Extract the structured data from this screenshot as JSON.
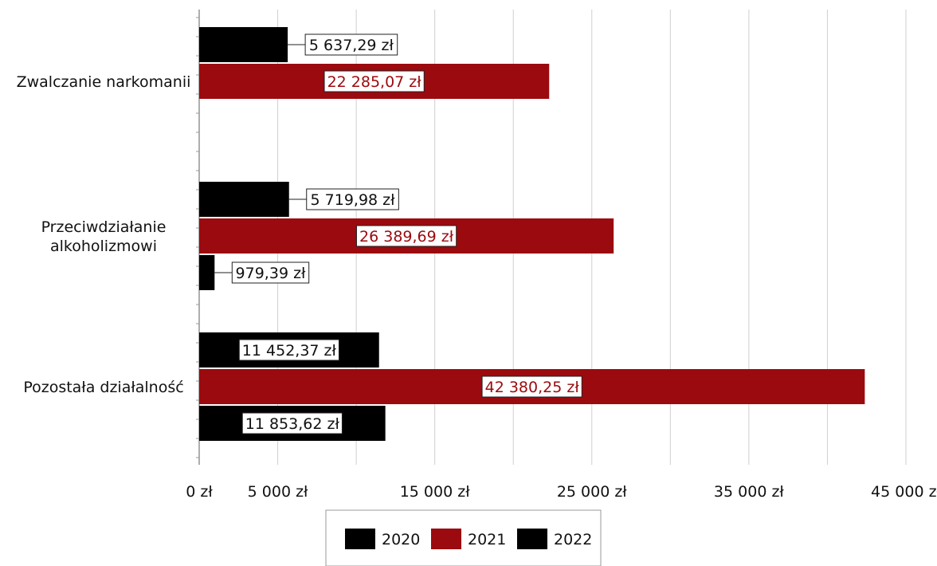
{
  "chart_data": {
    "type": "bar",
    "orientation": "horizontal",
    "categories": [
      [
        "Zwalczanie narkomanii"
      ],
      [
        "Przeciwdziałanie",
        "alkoholizmowi"
      ],
      [
        "Pozostała działalność"
      ]
    ],
    "series": [
      {
        "name": "2020",
        "color": "#000000",
        "values": [
          5637.29,
          5719.98,
          11452.37
        ],
        "labels": [
          "5 637,29 zł",
          "5 719,98 zł",
          "11 452,37 zł"
        ]
      },
      {
        "name": "2021",
        "color": "#9b0a0e",
        "values": [
          22285.07,
          26389.69,
          42380.25
        ],
        "labels": [
          "22 285,07 zł",
          "26 389,69 zł",
          "42 380,25 zł"
        ]
      },
      {
        "name": "2022",
        "color": "#000000",
        "values": [
          null,
          979.39,
          11853.62
        ],
        "labels": [
          "",
          "979,39 zł",
          "11 853,62 zł"
        ]
      }
    ],
    "xlim": [
      0,
      45000
    ],
    "x_tick_labels": [
      {
        "value": 0,
        "label": "0 zł"
      },
      {
        "value": 5000,
        "label": "5 000 zł"
      },
      {
        "value": 15000,
        "label": "15 000 zł"
      },
      {
        "value": 25000,
        "label": "25 000 zł"
      },
      {
        "value": 35000,
        "label": "35 000 zł"
      },
      {
        "value": 45000,
        "label": "45 000 zł"
      }
    ],
    "gridlines": [
      5000,
      10000,
      15000,
      20000,
      25000,
      30000,
      35000,
      40000,
      45000
    ],
    "grid": true,
    "legend_position": "bottom",
    "title": "",
    "xlabel": "",
    "ylabel": ""
  }
}
